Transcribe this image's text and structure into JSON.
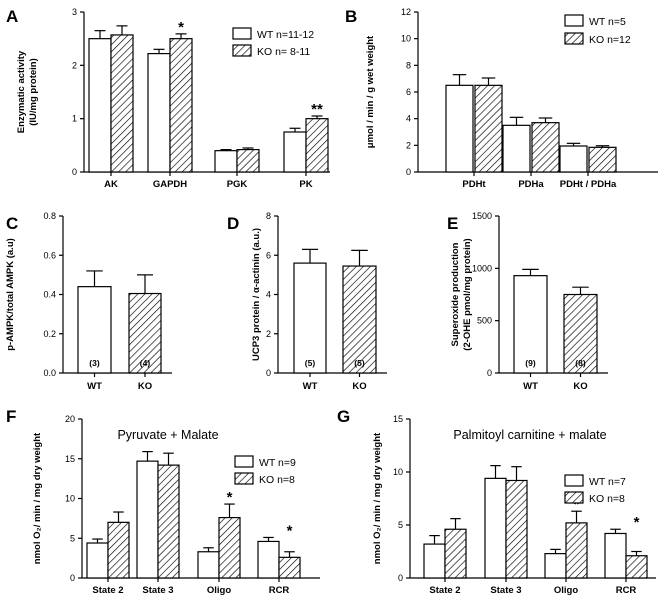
{
  "colors": {
    "wt_fill": "#ffffff",
    "ko_fill": "hatch",
    "line": "#000000"
  },
  "chart_data": [
    {
      "id": "A",
      "type": "bar",
      "label": "A",
      "ylabel_lines": [
        "Enzymatic activity",
        "(IU/mg protein)"
      ],
      "ylim": [
        0,
        3
      ],
      "yticks": [
        0,
        1,
        2,
        3
      ],
      "categories": [
        "AK",
        "GAPDH",
        "PGK",
        "PK"
      ],
      "series": [
        {
          "name": "WT n=11-12",
          "kind": "wt",
          "values": [
            2.5,
            2.22,
            0.4,
            0.75
          ],
          "errors": [
            0.15,
            0.08,
            0.02,
            0.07
          ]
        },
        {
          "name": "KO n= 8-11",
          "kind": "ko",
          "values": [
            2.57,
            2.5,
            0.42,
            1.0
          ],
          "errors": [
            0.17,
            0.09,
            0.03,
            0.05
          ]
        }
      ],
      "annotations": [
        {
          "category": 1,
          "text": "*"
        },
        {
          "category": 3,
          "text": "**"
        }
      ],
      "legend": "top-right"
    },
    {
      "id": "B",
      "type": "bar",
      "label": "B",
      "ylabel_lines": [
        "μmol / min / g wet weight"
      ],
      "ylim": [
        0,
        12
      ],
      "yticks": [
        0,
        2,
        4,
        6,
        8,
        10,
        12
      ],
      "categories": [
        "PDHt",
        "PDHa",
        "PDHt / PDHa"
      ],
      "series": [
        {
          "name": "WT n=5",
          "kind": "wt",
          "values": [
            6.5,
            3.5,
            1.95
          ],
          "errors": [
            0.8,
            0.6,
            0.2
          ]
        },
        {
          "name": "KO n=12",
          "kind": "ko",
          "values": [
            6.5,
            3.7,
            1.85
          ],
          "errors": [
            0.55,
            0.35,
            0.12
          ]
        }
      ],
      "annotations": [],
      "legend": "top-right"
    },
    {
      "id": "C",
      "type": "bar",
      "label": "C",
      "ylabel_lines": [
        "p-AMPK/total AMPK (a.u)"
      ],
      "ylim": [
        0,
        0.8
      ],
      "yticks": [
        0,
        0.2,
        0.4,
        0.6,
        0.8
      ],
      "tick_labels": [
        "0.0",
        "0.2",
        "0.4",
        "0.6",
        "0.8"
      ],
      "categories": [
        "WT",
        "KO"
      ],
      "bars": [
        {
          "kind": "wt",
          "value": 0.44,
          "error": 0.08,
          "n": "(3)"
        },
        {
          "kind": "ko",
          "value": 0.405,
          "error": 0.095,
          "n": "(4)"
        }
      ]
    },
    {
      "id": "D",
      "type": "bar",
      "label": "D",
      "ylabel_lines": [
        "UCP3 protein / α-actinin (a.u.)"
      ],
      "ylim": [
        0,
        8
      ],
      "yticks": [
        0,
        2,
        4,
        6,
        8
      ],
      "categories": [
        "WT",
        "KO"
      ],
      "bars": [
        {
          "kind": "wt",
          "value": 5.6,
          "error": 0.7,
          "n": "(5)"
        },
        {
          "kind": "ko",
          "value": 5.45,
          "error": 0.8,
          "n": "(5)"
        }
      ]
    },
    {
      "id": "E",
      "type": "bar",
      "label": "E",
      "ylabel_lines": [
        "Superoxide production",
        "(2-OHE pmol/mg protein)"
      ],
      "ylim": [
        0,
        1500
      ],
      "yticks": [
        0,
        500,
        1000,
        1500
      ],
      "categories": [
        "WT",
        "KO"
      ],
      "bars": [
        {
          "kind": "wt",
          "value": 930,
          "error": 60,
          "n": "(9)"
        },
        {
          "kind": "ko",
          "value": 750,
          "error": 70,
          "n": "(8)"
        }
      ]
    },
    {
      "id": "F",
      "type": "bar",
      "label": "F",
      "title": "Pyruvate + Malate",
      "ylabel_lines": [
        "nmol O₂/ min / mg dry weight"
      ],
      "ylim": [
        0,
        20
      ],
      "yticks": [
        0,
        5,
        10,
        15,
        20
      ],
      "categories": [
        "State 2",
        "State 3",
        "Oligo",
        "RCR"
      ],
      "series": [
        {
          "name": "WT n=9",
          "kind": "wt",
          "values": [
            4.4,
            14.7,
            3.3,
            4.6
          ],
          "errors": [
            0.5,
            1.2,
            0.5,
            0.5
          ]
        },
        {
          "name": "KO n=8",
          "kind": "ko",
          "values": [
            7.0,
            14.2,
            7.6,
            2.6
          ],
          "errors": [
            1.3,
            1.5,
            1.7,
            0.7
          ]
        }
      ],
      "annotations": [
        {
          "category": 2,
          "text": "*"
        },
        {
          "category": 3,
          "text": "*"
        }
      ],
      "legend": "top-right"
    },
    {
      "id": "G",
      "type": "bar",
      "label": "G",
      "title": "Palmitoyl carnitine + malate",
      "ylabel_lines": [
        "nmol O₂/ min / mg dry weight"
      ],
      "ylim": [
        0,
        15
      ],
      "yticks": [
        0,
        5,
        10,
        15
      ],
      "categories": [
        "State 2",
        "State 3",
        "Oligo",
        "RCR"
      ],
      "series": [
        {
          "name": "WT n=7",
          "kind": "wt",
          "values": [
            3.2,
            9.4,
            2.3,
            4.2
          ],
          "errors": [
            0.8,
            1.2,
            0.4,
            0.4
          ]
        },
        {
          "name": "KO n=8",
          "kind": "ko",
          "values": [
            4.6,
            9.2,
            5.2,
            2.1
          ],
          "errors": [
            1.0,
            1.3,
            1.1,
            0.4
          ]
        }
      ],
      "annotations": [
        {
          "category": 2,
          "text": "*"
        },
        {
          "category": 3,
          "text": "*"
        }
      ],
      "legend": "top-right"
    }
  ]
}
